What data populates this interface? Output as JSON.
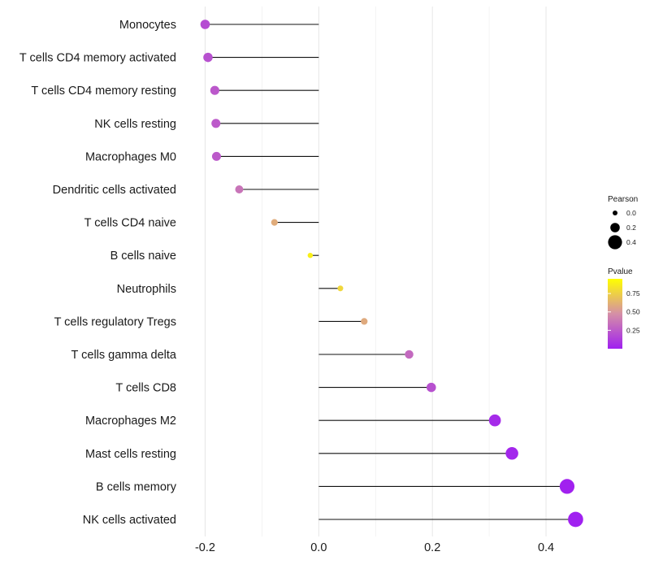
{
  "chart_data": {
    "type": "lollipop",
    "title": "",
    "xlabel": "",
    "ylabel": "",
    "xlim": [
      -0.235,
      0.48
    ],
    "x_ticks": [
      -0.2,
      0.0,
      0.2,
      0.4
    ],
    "x_tick_labels": [
      "-0.2",
      "0.0",
      "0.2",
      "0.4"
    ],
    "grid": true,
    "legend_position": "right",
    "size_legend": {
      "title": "Pearson",
      "values": [
        0.0,
        0.2,
        0.4
      ],
      "labels": [
        "0.0",
        "0.2",
        "0.4"
      ]
    },
    "color_legend": {
      "title": "Pvalue",
      "ticks": [
        0.75,
        0.5,
        0.25
      ],
      "tick_labels": [
        "0.75",
        "0.50",
        "0.25"
      ],
      "low_color": "#a020f0",
      "mid_color": "#d58fa6",
      "high_color": "#ffff00"
    },
    "series": [
      {
        "category": "Monocytes",
        "pearson": -0.2,
        "pvalue": 0.2
      },
      {
        "category": "T cells CD4 memory activated",
        "pearson": -0.195,
        "pvalue": 0.22
      },
      {
        "category": "T cells CD4 memory resting",
        "pearson": -0.183,
        "pvalue": 0.25
      },
      {
        "category": "NK cells resting",
        "pearson": -0.181,
        "pvalue": 0.26
      },
      {
        "category": "Macrophages M0",
        "pearson": -0.18,
        "pvalue": 0.26
      },
      {
        "category": "Dendritic cells activated",
        "pearson": -0.14,
        "pvalue": 0.38
      },
      {
        "category": "T cells CD4 naive",
        "pearson": -0.078,
        "pvalue": 0.63
      },
      {
        "category": "B cells naive",
        "pearson": -0.015,
        "pvalue": 0.93
      },
      {
        "category": "Neutrophils",
        "pearson": 0.038,
        "pvalue": 0.82
      },
      {
        "category": "T cells regulatory  Tregs",
        "pearson": 0.08,
        "pvalue": 0.62
      },
      {
        "category": "T cells gamma delta",
        "pearson": 0.159,
        "pvalue": 0.33
      },
      {
        "category": "T cells CD8",
        "pearson": 0.198,
        "pvalue": 0.22
      },
      {
        "category": "Macrophages M2",
        "pearson": 0.31,
        "pvalue": 0.05
      },
      {
        "category": "Mast cells resting",
        "pearson": 0.34,
        "pvalue": 0.03
      },
      {
        "category": "B cells memory",
        "pearson": 0.437,
        "pvalue": 0.005
      },
      {
        "category": "NK cells activated",
        "pearson": 0.452,
        "pvalue": 0.003
      }
    ]
  }
}
